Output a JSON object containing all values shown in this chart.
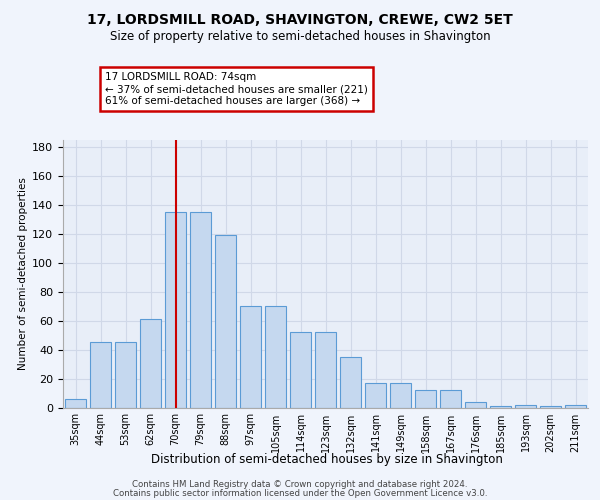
{
  "title1": "17, LORDSMILL ROAD, SHAVINGTON, CREWE, CW2 5ET",
  "title2": "Size of property relative to semi-detached houses in Shavington",
  "xlabel": "Distribution of semi-detached houses by size in Shavington",
  "ylabel": "Number of semi-detached properties",
  "categories": [
    "35sqm",
    "44sqm",
    "53sqm",
    "62sqm",
    "70sqm",
    "79sqm",
    "88sqm",
    "97sqm",
    "105sqm",
    "114sqm",
    "123sqm",
    "132sqm",
    "141sqm",
    "149sqm",
    "158sqm",
    "167sqm",
    "176sqm",
    "185sqm",
    "193sqm",
    "202sqm",
    "211sqm"
  ],
  "bar_values": [
    6,
    45,
    45,
    61,
    135,
    135,
    119,
    70,
    70,
    52,
    52,
    35,
    17,
    17,
    12,
    12,
    4,
    1,
    2,
    1,
    2
  ],
  "bar_color": "#c5d8ef",
  "bar_edge_color": "#5b9bd5",
  "bg_color": "#e8eef8",
  "grid_color": "#d0d8e8",
  "vline_pos": 4,
  "vline_color": "#cc0000",
  "annotation_line1": "17 LORDSMILL ROAD: 74sqm",
  "annotation_line2": "← 37% of semi-detached houses are smaller (221)",
  "annotation_line3": "61% of semi-detached houses are larger (368) →",
  "box_facecolor": "#ffffff",
  "box_edgecolor": "#cc0000",
  "ylim": [
    0,
    185
  ],
  "yticks": [
    0,
    20,
    40,
    60,
    80,
    100,
    120,
    140,
    160,
    180
  ],
  "footer1": "Contains HM Land Registry data © Crown copyright and database right 2024.",
  "footer2": "Contains public sector information licensed under the Open Government Licence v3.0."
}
